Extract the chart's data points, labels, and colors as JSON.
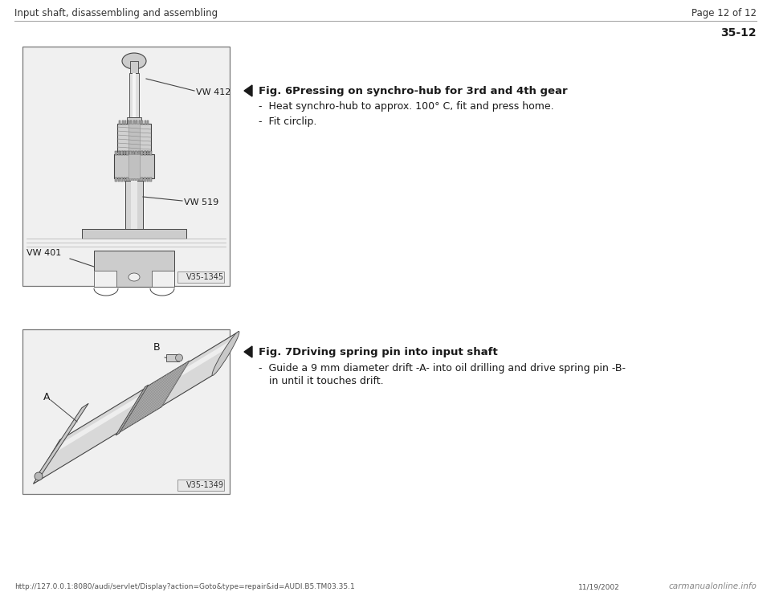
{
  "page_bg": "#ffffff",
  "header_left": "Input shaft, disassembling and assembling",
  "header_right": "Page 12 of 12",
  "section_number": "35-12",
  "fig6_title": "Fig. 6",
  "fig6_subtitle": "Pressing on synchro-hub for 3rd and 4th gear",
  "fig6_bullet1": "Heat synchro-hub to approx. 100° C, fit and press home.",
  "fig6_bullet2": "Fit circlip.",
  "fig6_image_label": "V35-1345",
  "fig7_title": "Fig. 7",
  "fig7_subtitle": "Driving spring pin into input shaft",
  "fig7_bullet1": "Guide a 9 mm diameter drift -A- into oil drilling and drive spring pin -B-",
  "fig7_bullet1b": "in until it touches drift.",
  "fig7_image_label": "V35-1349",
  "footer_url": "http://127.0.0.1:8080/audi/servlet/Display?action=Goto&type=repair&id=AUDI.B5.TM03.35.1",
  "footer_date": "11/19/2002",
  "footer_brand": "carmanualonline.info",
  "text_color": "#1a1a1a",
  "gray_line": "#aaaaaa",
  "img_border": "#888888",
  "img_bg": "#f0f0f0",
  "dark_gray": "#444444",
  "mid_gray": "#888888",
  "light_gray": "#cccccc",
  "very_light_gray": "#e8e8e8"
}
